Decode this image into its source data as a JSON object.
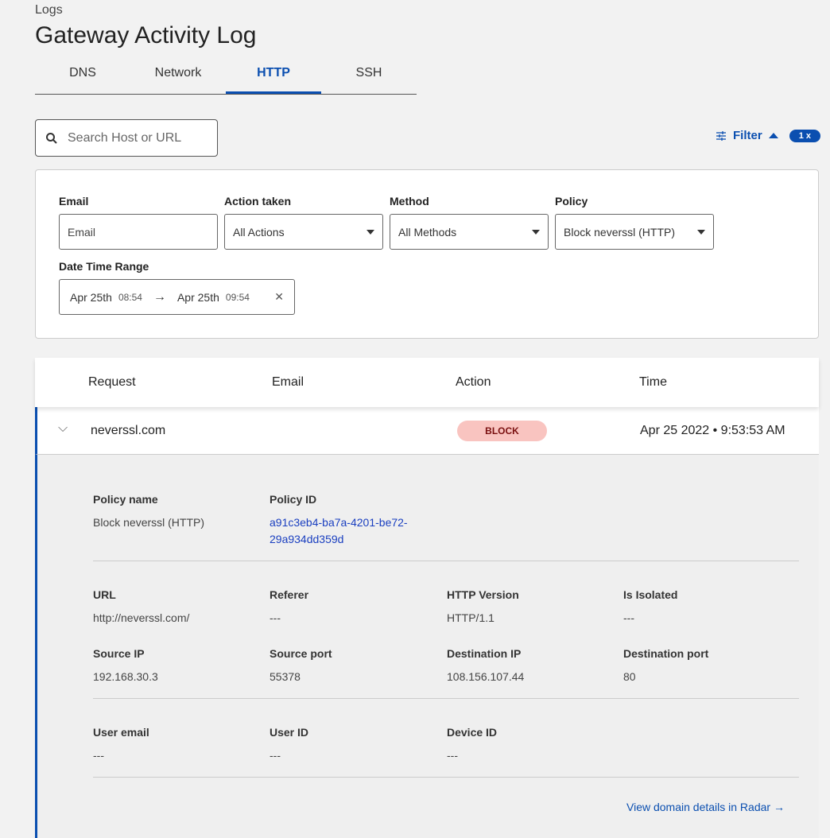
{
  "breadcrumb": "Logs",
  "title": "Gateway Activity Log",
  "tabs": [
    {
      "label": "DNS"
    },
    {
      "label": "Network"
    },
    {
      "label": "HTTP",
      "active": true
    },
    {
      "label": "SSH"
    }
  ],
  "search": {
    "placeholder": "Search Host or URL"
  },
  "filter": {
    "label": "Filter",
    "count": "1 x"
  },
  "filters": {
    "email": {
      "label": "Email",
      "placeholder": "Email"
    },
    "action": {
      "label": "Action taken",
      "value": "All Actions"
    },
    "method": {
      "label": "Method",
      "value": "All Methods"
    },
    "policy": {
      "label": "Policy",
      "value": "Block neverssl (HTTP)"
    },
    "date": {
      "label": "Date Time Range",
      "start_date": "Apr 25th",
      "start_time": "08:54",
      "end_date": "Apr 25th",
      "end_time": "09:54"
    }
  },
  "table": {
    "headers": [
      "Request",
      "Email",
      "Action",
      "Time"
    ],
    "row": {
      "request": "neverssl.com",
      "email": "",
      "action": "BLOCK",
      "time": "Apr 25 2022 • 9:53:53 AM"
    }
  },
  "details": {
    "policy_name": {
      "label": "Policy name",
      "value": "Block neverssl (HTTP)"
    },
    "policy_id": {
      "label": "Policy ID",
      "line1": "a91c3eb4-ba7a-4201-be72-",
      "line2": "29a934dd359d"
    },
    "url": {
      "label": "URL",
      "value": "http://neverssl.com/"
    },
    "referer": {
      "label": "Referer",
      "value": "---"
    },
    "http_version": {
      "label": "HTTP Version",
      "value": "HTTP/1.1"
    },
    "is_isolated": {
      "label": "Is Isolated",
      "value": "---"
    },
    "source_ip": {
      "label": "Source IP",
      "value": "192.168.30.3"
    },
    "source_port": {
      "label": "Source port",
      "value": "55378"
    },
    "dest_ip": {
      "label": "Destination IP",
      "value": "108.156.107.44"
    },
    "dest_port": {
      "label": "Destination port",
      "value": "80"
    },
    "user_email": {
      "label": "User email",
      "value": "---"
    },
    "user_id": {
      "label": "User ID",
      "value": "---"
    },
    "device_id": {
      "label": "Device ID",
      "value": "---"
    },
    "radar_link": "View domain details in Radar →"
  },
  "colors": {
    "accent": "#0b4fb0",
    "block_bg": "#f9c4c0",
    "block_text": "#7a1010"
  }
}
